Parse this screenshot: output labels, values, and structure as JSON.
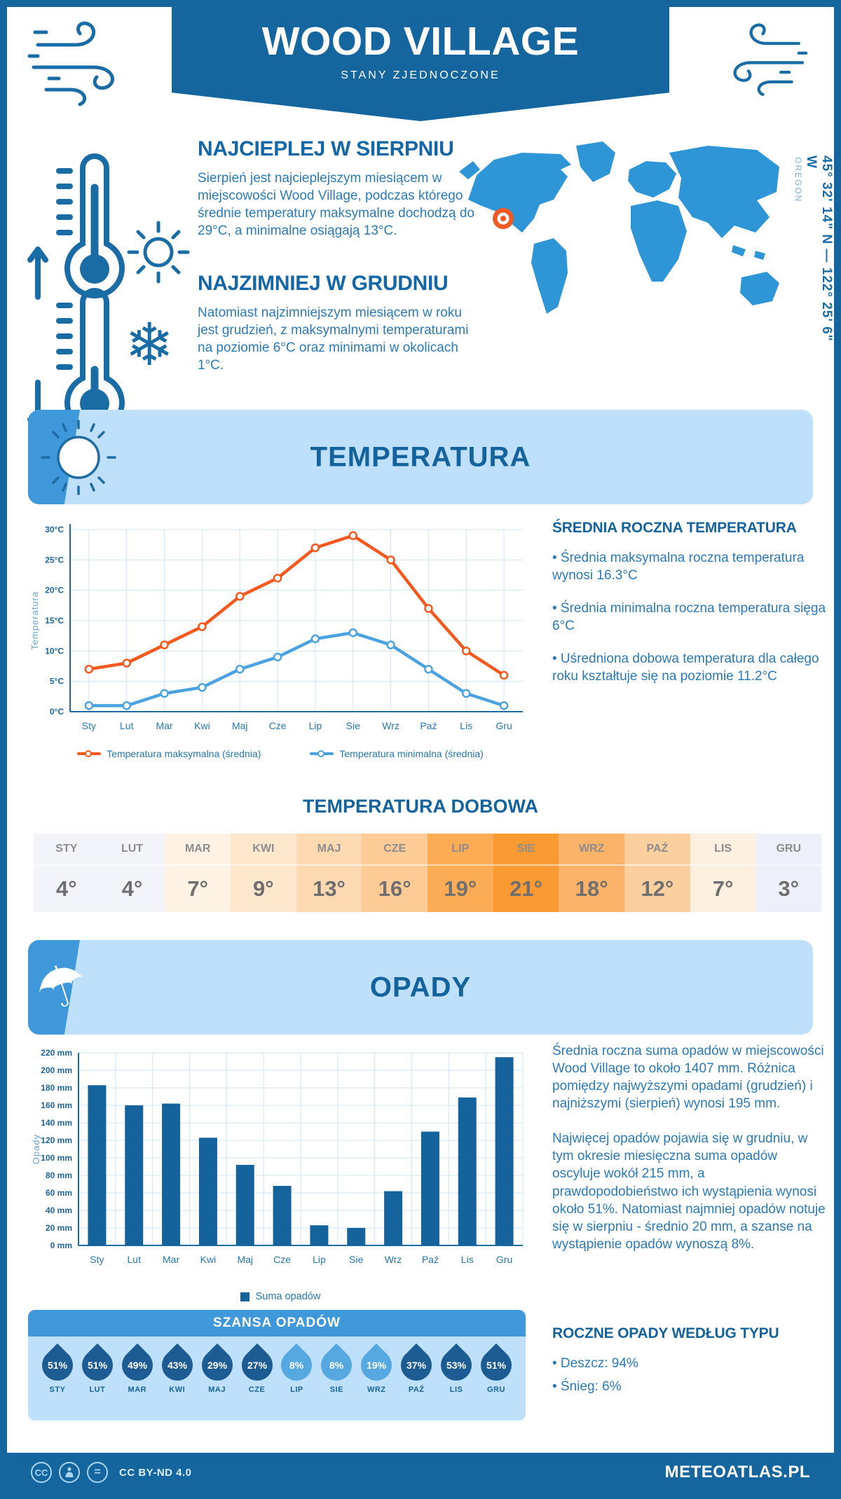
{
  "header": {
    "title": "WOOD VILLAGE",
    "subtitle": "STANY ZJEDNOCZONE"
  },
  "geo": {
    "coordinates": "45° 32' 14\" N — 122° 25' 6\" W",
    "region": "OREGON"
  },
  "sections": {
    "warmest": {
      "heading": "NAJCIEPLEJ W SIERPNIU",
      "text": "Sierpień jest najcieplejszym miesiącem w miejscowości Wood Village, podczas którego średnie temperatury maksymalne dochodzą do 29°C, a minimalne osiągają 13°C."
    },
    "coldest": {
      "heading": "NAJZIMNIEJ W GRUDNIU",
      "text": "Natomiast najzimniejszym miesiącem w roku jest grudzień, z maksymalnymi temperaturami na poziomie 6°C oraz minimami w okolicach 1°C."
    }
  },
  "temperature": {
    "banner": "TEMPERATURA",
    "annual": {
      "heading": "ŚREDNIA ROCZNA TEMPERATURA",
      "bullets": [
        "• Średnia maksymalna roczna temperatura wynosi 16.3°C",
        "• Średnia minimalna roczna temperatura sięga 6°C",
        "• Uśredniona dobowa temperatura dla całego roku kształtuje się na poziomie 11.2°C"
      ]
    },
    "daily": {
      "heading": "TEMPERATURA DOBOWA",
      "months": [
        "STY",
        "LUT",
        "MAR",
        "KWI",
        "MAJ",
        "CZE",
        "LIP",
        "SIE",
        "WRZ",
        "PAŹ",
        "LIS",
        "GRU"
      ],
      "values": [
        "4°",
        "4°",
        "7°",
        "9°",
        "13°",
        "16°",
        "19°",
        "21°",
        "18°",
        "12°",
        "7°",
        "3°"
      ],
      "cell_colors": [
        "#f3f4fa",
        "#f3f4fa",
        "#fdf2e4",
        "#fde7cd",
        "#fdd9b2",
        "#fccb96",
        "#fbac55",
        "#f99b32",
        "#fbb269",
        "#fccf9e",
        "#fdf0e0",
        "#edf0f8"
      ]
    }
  },
  "precipitation": {
    "banner": "OPADY",
    "paragraph1": "Średnia roczna suma opadów w miejscowości Wood Village to około 1407 mm. Różnica pomiędzy najwyższymi opadami (grudzień) i najniższymi (sierpień) wynosi 195 mm.",
    "paragraph2": "Najwięcej opadów pojawia się w grudniu, w tym okresie miesięczna suma opadów oscyluje wokół 215 mm, a prawdopodobieństwo ich wystąpienia wynosi około 51%. Natomiast najmniej opadów notuje się w sierpniu - średnio 20 mm, a szanse na wystąpienie opadów wynoszą 8%.",
    "type": {
      "heading": "ROCZNE OPADY WEDŁUG TYPU",
      "bullets": [
        "• Deszcz: 94%",
        "• Śnieg: 6%"
      ]
    },
    "chance": {
      "heading": "SZANSA OPADÓW",
      "months": [
        "STY",
        "LUT",
        "MAR",
        "KWI",
        "MAJ",
        "CZE",
        "LIP",
        "SIE",
        "WRZ",
        "PAŹ",
        "LIS",
        "GRU"
      ],
      "values": [
        "51%",
        "51%",
        "49%",
        "43%",
        "29%",
        "27%",
        "8%",
        "8%",
        "19%",
        "37%",
        "53%",
        "51%"
      ],
      "dark": [
        true,
        true,
        true,
        true,
        true,
        true,
        false,
        false,
        false,
        true,
        true,
        true
      ]
    }
  },
  "chart_data": [
    {
      "type": "line",
      "categories": [
        "Sty",
        "Lut",
        "Mar",
        "Kwi",
        "Maj",
        "Cze",
        "Lip",
        "Sie",
        "Wrz",
        "Paź",
        "Lis",
        "Gru"
      ],
      "series": [
        {
          "name": "Temperatura maksymalna (średnia)",
          "color": "#f4581c",
          "values": [
            7,
            8,
            11,
            14,
            19,
            22,
            27,
            29,
            25,
            17,
            10,
            6
          ]
        },
        {
          "name": "Temperatura minimalna (średnia)",
          "color": "#4aa3e0",
          "values": [
            1,
            1,
            3,
            4,
            7,
            9,
            12,
            13,
            11,
            7,
            3,
            1
          ]
        }
      ],
      "title": "",
      "xlabel": "",
      "ylabel": "Temperatura",
      "ylim": [
        0,
        30
      ],
      "ytick_step": 5,
      "ytick_suffix": "°C",
      "grid": true,
      "legend_position": "bottom"
    },
    {
      "type": "bar",
      "categories": [
        "Sty",
        "Lut",
        "Mar",
        "Kwi",
        "Maj",
        "Cze",
        "Lip",
        "Sie",
        "Wrz",
        "Paź",
        "Lis",
        "Gru"
      ],
      "values": [
        183,
        160,
        162,
        123,
        92,
        68,
        23,
        20,
        62,
        130,
        169,
        215
      ],
      "legend": "Suma opadów",
      "title": "",
      "xlabel": "",
      "ylabel": "Opady",
      "ylim": [
        0,
        220
      ],
      "ytick_step": 20,
      "ytick_suffix": " mm",
      "grid": true,
      "legend_position": "bottom"
    }
  ],
  "footer": {
    "license": "CC BY-ND 4.0",
    "brand": "METEOATLAS.PL"
  },
  "colors": {
    "primary": "#15669e",
    "banner_cap": "#3e98d9",
    "banner_bg": "#bfe0fa",
    "map_fill": "#2e96d7",
    "marker": "#f15a24",
    "grid": "#cfe4f4",
    "axis": "#1c6ba3",
    "tick": "#1d649c",
    "xtick": "#2577ae",
    "ylabel": "#6aa4cf",
    "bar": "#15639c",
    "drop_dark": "#1d5c92",
    "drop_light": "#55a9e0"
  }
}
